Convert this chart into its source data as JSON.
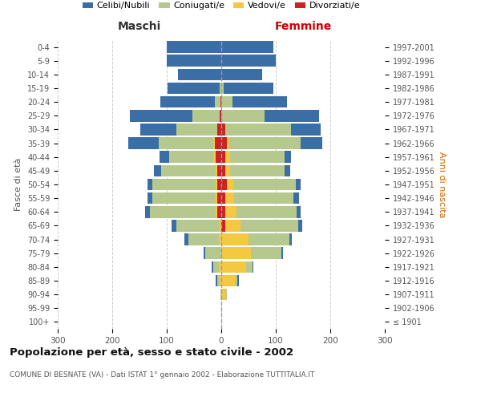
{
  "age_groups": [
    "100+",
    "95-99",
    "90-94",
    "85-89",
    "80-84",
    "75-79",
    "70-74",
    "65-69",
    "60-64",
    "55-59",
    "50-54",
    "45-49",
    "40-44",
    "35-39",
    "30-34",
    "25-29",
    "20-24",
    "15-19",
    "10-14",
    "5-9",
    "0-4"
  ],
  "birth_years": [
    "≤ 1901",
    "1902-1906",
    "1907-1911",
    "1912-1916",
    "1917-1921",
    "1922-1926",
    "1927-1931",
    "1932-1936",
    "1937-1941",
    "1942-1946",
    "1947-1951",
    "1952-1956",
    "1957-1961",
    "1962-1966",
    "1967-1971",
    "1972-1976",
    "1977-1981",
    "1982-1986",
    "1987-1991",
    "1992-1996",
    "1997-2001"
  ],
  "maschi_celibi": [
    0,
    0,
    0,
    2,
    2,
    3,
    8,
    8,
    8,
    10,
    10,
    12,
    18,
    55,
    65,
    115,
    100,
    95,
    80,
    100,
    100
  ],
  "maschi_coniugati": [
    0,
    0,
    2,
    5,
    10,
    30,
    55,
    80,
    120,
    115,
    115,
    100,
    80,
    100,
    75,
    50,
    10,
    3,
    0,
    0,
    0
  ],
  "maschi_vedovi": [
    0,
    0,
    0,
    3,
    5,
    0,
    5,
    3,
    3,
    3,
    3,
    3,
    5,
    3,
    0,
    0,
    0,
    0,
    0,
    0,
    0
  ],
  "maschi_divorziati": [
    0,
    0,
    0,
    0,
    0,
    0,
    0,
    0,
    8,
    8,
    8,
    8,
    10,
    12,
    8,
    3,
    2,
    0,
    0,
    0,
    0
  ],
  "femmine_nubili": [
    0,
    0,
    0,
    2,
    2,
    3,
    5,
    8,
    8,
    10,
    8,
    10,
    12,
    40,
    55,
    100,
    100,
    90,
    75,
    100,
    95
  ],
  "femmine_coniugate": [
    0,
    0,
    2,
    5,
    12,
    55,
    75,
    105,
    110,
    110,
    115,
    100,
    100,
    130,
    120,
    80,
    20,
    5,
    0,
    0,
    0
  ],
  "femmine_vedove": [
    0,
    2,
    8,
    25,
    45,
    55,
    50,
    28,
    20,
    15,
    12,
    8,
    8,
    5,
    0,
    0,
    0,
    0,
    0,
    0,
    0
  ],
  "femmine_divorziate": [
    0,
    0,
    0,
    0,
    0,
    0,
    0,
    8,
    8,
    8,
    10,
    8,
    8,
    10,
    8,
    0,
    0,
    0,
    0,
    0,
    0
  ],
  "color_celibi": "#3b6ea5",
  "color_coniugati": "#b5c98e",
  "color_vedovi": "#f5c842",
  "color_divorziati": "#cc2222",
  "legend_labels": [
    "Celibi/Nubili",
    "Coniugati/e",
    "Vedovi/e",
    "Divorziati/e"
  ],
  "xlim": 300,
  "title": "Popolazione per età, sesso e stato civile - 2002",
  "subtitle": "COMUNE DI BESNATE (VA) - Dati ISTAT 1° gennaio 2002 - Elaborazione TUTTITALIA.IT",
  "ylabel_left": "Fasce di età",
  "ylabel_right": "Anni di nascita",
  "label_maschi": "Maschi",
  "label_femmine": "Femmine",
  "bg_color": "#ffffff",
  "grid_color": "#cccccc"
}
